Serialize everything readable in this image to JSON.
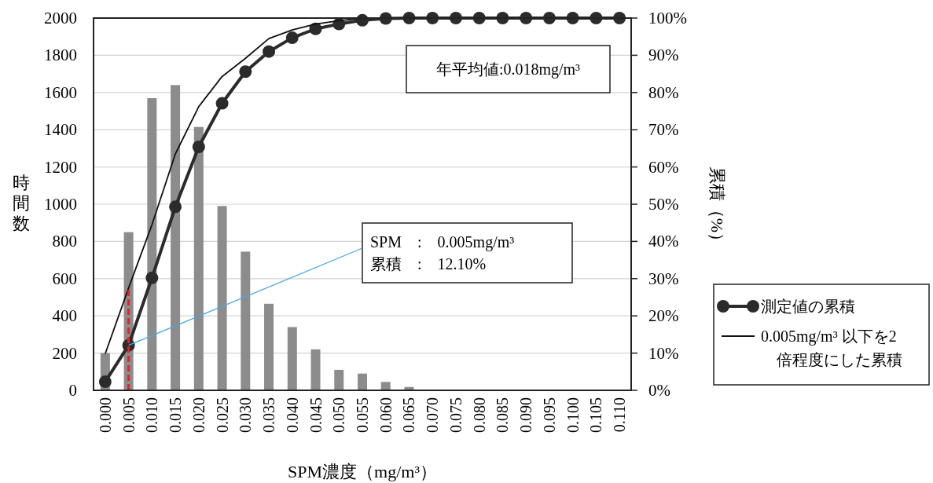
{
  "chart_data": {
    "type": "bar",
    "xlabel": "SPM濃度（mg/m³）",
    "ylabel": "時間数",
    "y2label": "累積（%）",
    "categories": [
      "0.000",
      "0.005",
      "0.010",
      "0.015",
      "0.020",
      "0.025",
      "0.030",
      "0.035",
      "0.040",
      "0.045",
      "0.050",
      "0.055",
      "0.060",
      "0.065",
      "0.070",
      "0.075",
      "0.080",
      "0.085",
      "0.090",
      "0.095",
      "0.100",
      "0.105",
      "0.110"
    ],
    "ylim": [
      0,
      2000
    ],
    "yticks": [
      0,
      200,
      400,
      600,
      800,
      1000,
      1200,
      1400,
      1600,
      1800,
      2000
    ],
    "y2lim": [
      0,
      100
    ],
    "y2ticks": [
      {
        "value": 0,
        "label": "0%"
      },
      {
        "value": 10,
        "label": "10%"
      },
      {
        "value": 20,
        "label": "20%"
      },
      {
        "value": 30,
        "label": "30%"
      },
      {
        "value": 40,
        "label": "40%"
      },
      {
        "value": 50,
        "label": "50%"
      },
      {
        "value": 60,
        "label": "60%"
      },
      {
        "value": 70,
        "label": "70%"
      },
      {
        "value": 80,
        "label": "80%"
      },
      {
        "value": 90,
        "label": "90%"
      },
      {
        "value": 100,
        "label": "100%"
      }
    ],
    "grid": "y",
    "legend": "right",
    "series": [
      {
        "color": "#8c8c8c",
        "values": [
          200,
          850,
          1570,
          1640,
          1415,
          990,
          745,
          465,
          340,
          220,
          110,
          90,
          45,
          18,
          0,
          0,
          0,
          0,
          0,
          0,
          0,
          0,
          0
        ]
      },
      {
        "type": "line",
        "name": "測定値の累積",
        "color": "#2b2b2b",
        "axis": "y2",
        "marker": "circle",
        "values": [
          2.3,
          12.1,
          30.2,
          49.3,
          65.4,
          77.1,
          85.6,
          91.0,
          94.7,
          97.1,
          98.4,
          99.4,
          99.9,
          100,
          100,
          100,
          100,
          100,
          100,
          100,
          100,
          100,
          100
        ]
      },
      {
        "type": "line",
        "name": "0.005mg/m³ 以下を2倍程度にした累積",
        "color": "#111111",
        "axis": "y2",
        "marker": "none",
        "values": [
          9.8,
          27.5,
          44.5,
          63.5,
          76.2,
          84.3,
          89.2,
          94.5,
          96.8,
          98.4,
          99.3,
          100,
          100,
          null,
          null,
          null,
          null,
          null,
          null,
          null,
          null,
          null,
          null
        ]
      }
    ],
    "ref_lines": [
      {
        "axis": "x",
        "value": "0.005",
        "color": "#e8202a",
        "line_style": "dashed"
      }
    ],
    "annotations": [
      "年平均値:0.018mg/m³",
      {
        "text": "SPM　:　0.005mg/m³\n累積　:　12.10%",
        "x": "0.005",
        "y": 242
      }
    ]
  }
}
